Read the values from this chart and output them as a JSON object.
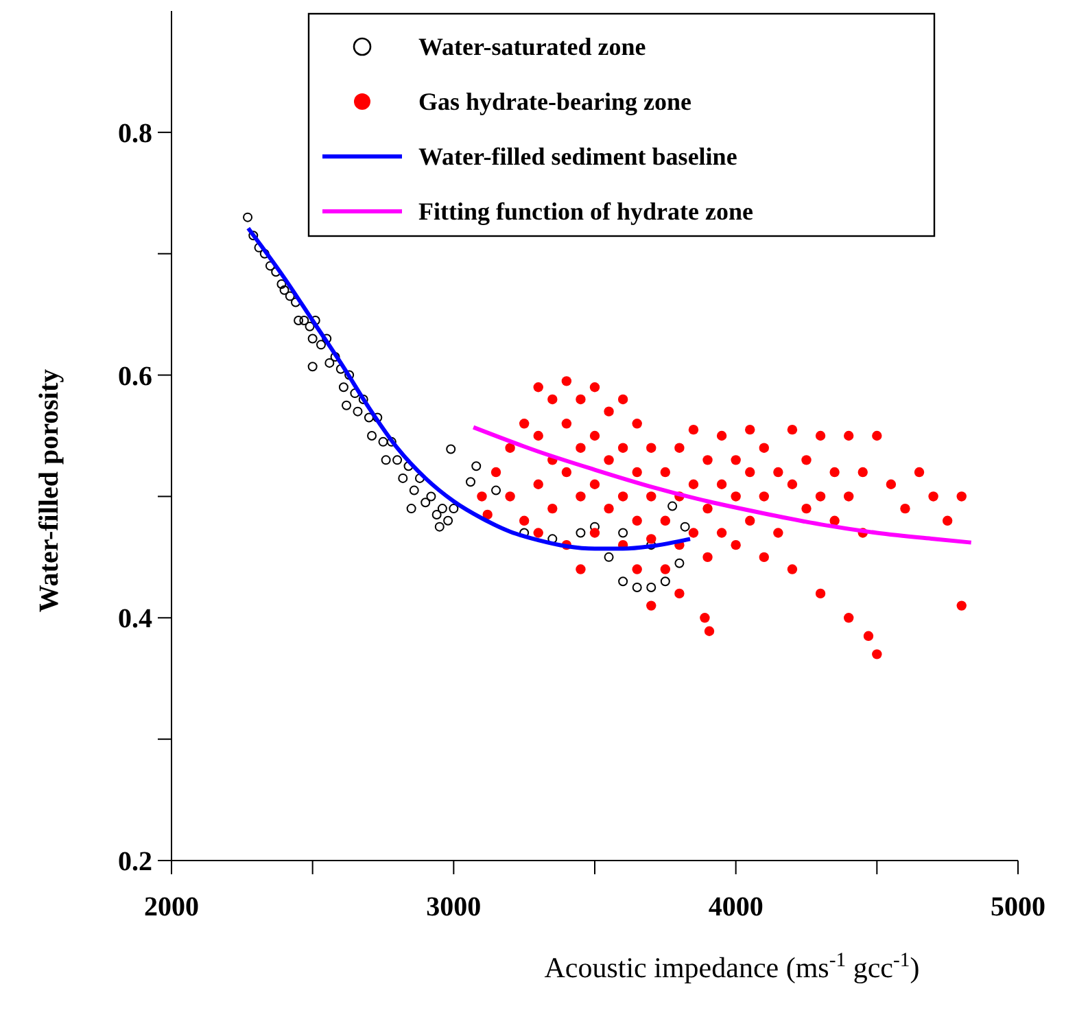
{
  "chart_data": {
    "type": "scatter",
    "xlabel": "Acoustic impedance (ms$^{-1}$ gcc$^{-1}$)",
    "ylabel": "Water-filled porosity",
    "xlim": [
      2000,
      5000
    ],
    "xticks": [
      2000,
      {
        "value": 2500,
        "label": null
      },
      3000,
      {
        "value": 3500,
        "label": null
      },
      4000,
      {
        "value": 4500,
        "label": null
      },
      5000
    ],
    "ylim": [
      0.2,
      0.9
    ],
    "yticks": [
      0.2,
      {
        "value": 0.3,
        "label": null
      },
      0.4,
      {
        "value": 0.5,
        "label": null
      },
      0.6,
      {
        "value": 0.7,
        "label": null
      },
      0.8
    ],
    "grid": false,
    "legend": "top",
    "marker": "circle",
    "series": [
      {
        "name": "Water-saturated zone",
        "color": "#000000",
        "x": [
          2270,
          2290,
          2310,
          2330,
          2350,
          2370,
          2390,
          2400,
          2420,
          2440,
          2450,
          2470,
          2490,
          2500,
          2510,
          2530,
          2550,
          2560,
          2580,
          2600,
          2610,
          2630,
          2650,
          2660,
          2680,
          2700,
          2710,
          2730,
          2750,
          2760,
          2780,
          2800,
          2820,
          2840,
          2860,
          2880,
          2900,
          2920,
          2940,
          2960,
          2980,
          3000,
          2500,
          2620,
          2850,
          2950,
          2990,
          3080,
          3060,
          3150,
          3250,
          3350,
          3450,
          3500,
          3550,
          3600,
          3650,
          3700,
          3750,
          3800,
          3820,
          3700,
          3600,
          3775
        ],
        "values": [
          0.73,
          0.715,
          0.705,
          0.7,
          0.69,
          0.685,
          0.675,
          0.67,
          0.665,
          0.66,
          0.645,
          0.645,
          0.64,
          0.63,
          0.645,
          0.625,
          0.63,
          0.61,
          0.615,
          0.605,
          0.59,
          0.6,
          0.585,
          0.57,
          0.58,
          0.565,
          0.55,
          0.565,
          0.545,
          0.53,
          0.545,
          0.53,
          0.515,
          0.525,
          0.505,
          0.515,
          0.495,
          0.5,
          0.485,
          0.49,
          0.48,
          0.49,
          0.607,
          0.575,
          0.49,
          0.475,
          0.539,
          0.525,
          0.512,
          0.505,
          0.47,
          0.465,
          0.47,
          0.475,
          0.45,
          0.43,
          0.425,
          0.425,
          0.43,
          0.445,
          0.475,
          0.46,
          0.47,
          0.492
        ]
      },
      {
        "name": "Gas hydrate-bearing zone",
        "color": "#ff0000",
        "x": [
          3100,
          3150,
          3120,
          3200,
          3200,
          3250,
          3250,
          3300,
          3300,
          3300,
          3300,
          3350,
          3350,
          3350,
          3400,
          3400,
          3400,
          3400,
          3450,
          3450,
          3450,
          3450,
          3500,
          3500,
          3500,
          3500,
          3550,
          3550,
          3550,
          3600,
          3600,
          3600,
          3600,
          3650,
          3650,
          3650,
          3650,
          3700,
          3700,
          3700,
          3700,
          3750,
          3750,
          3750,
          3800,
          3800,
          3800,
          3800,
          3850,
          3850,
          3850,
          3900,
          3900,
          3900,
          3950,
          3950,
          3950,
          4000,
          4000,
          4000,
          4050,
          4050,
          4050,
          4100,
          4100,
          4100,
          4150,
          4150,
          4200,
          4200,
          4200,
          4250,
          4250,
          4300,
          4300,
          4300,
          4350,
          4350,
          4400,
          4400,
          4400,
          4450,
          4450,
          4470,
          4500,
          4500,
          4550,
          4600,
          4650,
          4700,
          4750,
          4800,
          4800,
          3906,
          3890
        ],
        "values": [
          0.5,
          0.52,
          0.485,
          0.54,
          0.5,
          0.56,
          0.48,
          0.59,
          0.55,
          0.51,
          0.47,
          0.58,
          0.53,
          0.49,
          0.595,
          0.56,
          0.52,
          0.46,
          0.58,
          0.54,
          0.5,
          0.44,
          0.59,
          0.55,
          0.51,
          0.47,
          0.57,
          0.53,
          0.49,
          0.58,
          0.54,
          0.5,
          0.46,
          0.56,
          0.52,
          0.48,
          0.44,
          0.54,
          0.5,
          0.465,
          0.41,
          0.52,
          0.48,
          0.44,
          0.54,
          0.5,
          0.46,
          0.42,
          0.555,
          0.51,
          0.47,
          0.53,
          0.49,
          0.45,
          0.55,
          0.51,
          0.47,
          0.53,
          0.5,
          0.46,
          0.555,
          0.52,
          0.48,
          0.54,
          0.5,
          0.45,
          0.52,
          0.47,
          0.555,
          0.51,
          0.44,
          0.53,
          0.49,
          0.55,
          0.5,
          0.42,
          0.52,
          0.48,
          0.55,
          0.5,
          0.4,
          0.52,
          0.47,
          0.385,
          0.37,
          0.55,
          0.51,
          0.49,
          0.52,
          0.5,
          0.48,
          0.5,
          0.41,
          0.389,
          0.4
        ]
      },
      {
        "name": "Water-filled sediment baseline",
        "type": "line",
        "color": "#0000ff",
        "marker": "none",
        "x": [
          2272,
          2400,
          2500,
          2600,
          2700,
          2800,
          2900,
          3000,
          3100,
          3200,
          3300,
          3400,
          3500,
          3600,
          3700,
          3838
        ],
        "values": [
          0.721,
          0.68,
          0.645,
          0.61,
          0.573,
          0.54,
          0.515,
          0.496,
          0.482,
          0.471,
          0.464,
          0.459,
          0.457,
          0.457,
          0.459,
          0.465
        ]
      },
      {
        "name": "Fitting function of hydrate zone",
        "type": "line",
        "color": "#ff00ff",
        "marker": "none",
        "x": [
          3070,
          3300,
          3500,
          3700,
          3900,
          4100,
          4300,
          4500,
          4700,
          4834
        ],
        "values": [
          0.557,
          0.537,
          0.522,
          0.508,
          0.496,
          0.486,
          0.477,
          0.47,
          0.465,
          0.462
        ]
      }
    ]
  }
}
